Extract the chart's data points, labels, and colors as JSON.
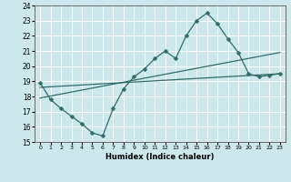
{
  "title": "",
  "xlabel": "Humidex (Indice chaleur)",
  "ylabel": "",
  "xlim": [
    -0.5,
    23.5
  ],
  "ylim": [
    15,
    24
  ],
  "yticks": [
    15,
    16,
    17,
    18,
    19,
    20,
    21,
    22,
    23,
    24
  ],
  "xticks": [
    0,
    1,
    2,
    3,
    4,
    5,
    6,
    7,
    8,
    9,
    10,
    11,
    12,
    13,
    14,
    15,
    16,
    17,
    18,
    19,
    20,
    21,
    22,
    23
  ],
  "bg_color": "#cce8ec",
  "line_color": "#336b6b",
  "grid_color": "#ffffff",
  "line1_x": [
    0,
    1,
    2,
    3,
    4,
    5,
    6,
    7,
    8,
    9,
    10,
    11,
    12,
    13,
    14,
    15,
    16,
    17,
    18,
    19,
    20,
    21,
    22,
    23
  ],
  "line1_y": [
    18.9,
    17.8,
    17.2,
    16.7,
    16.2,
    15.6,
    15.4,
    17.2,
    18.5,
    19.3,
    19.8,
    20.5,
    21.0,
    20.5,
    22.0,
    23.0,
    23.5,
    22.8,
    21.8,
    20.9,
    19.5,
    19.3,
    19.4,
    19.5
  ],
  "line2_x": [
    0,
    23
  ],
  "line2_y": [
    17.9,
    20.9
  ],
  "line3_x": [
    0,
    23
  ],
  "line3_y": [
    18.6,
    19.5
  ],
  "marker_size": 2.5,
  "line_width": 0.9
}
